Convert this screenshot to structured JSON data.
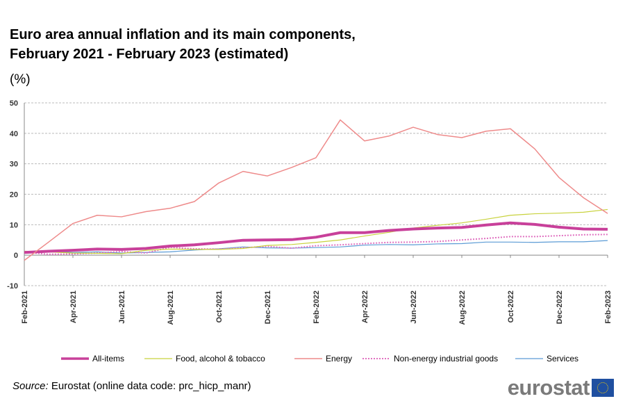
{
  "title_line1": "Euro area annual inflation and its main components,",
  "title_line2": "February 2021 - February 2023 (estimated)",
  "unit_label": "(%)",
  "source_prefix": "Source:",
  "source_text": " Eurostat (online data code: prc_hicp_manr)",
  "logo_text": "eurostat",
  "chart_data": {
    "type": "line",
    "ylim": [
      -10,
      50
    ],
    "yticks": [
      -10,
      0,
      10,
      20,
      30,
      40,
      50
    ],
    "grid": true,
    "legend_position": "bottom",
    "x": [
      "Feb-2021",
      "Mar-2021",
      "Apr-2021",
      "May-2021",
      "Jun-2021",
      "Jul-2021",
      "Aug-2021",
      "Sep-2021",
      "Oct-2021",
      "Nov-2021",
      "Dec-2021",
      "Jan-2022",
      "Feb-2022",
      "Mar-2022",
      "Apr-2022",
      "May-2022",
      "Jun-2022",
      "Jul-2022",
      "Aug-2022",
      "Sep-2022",
      "Oct-2022",
      "Nov-2022",
      "Dec-2022",
      "Jan-2023",
      "Feb-2023"
    ],
    "xtick_labels": [
      "Feb-2021",
      "Apr-2021",
      "Jun-2021",
      "Aug-2021",
      "Oct-2021",
      "Dec-2021",
      "Feb-2022",
      "Apr-2022",
      "Jun-2022",
      "Aug-2022",
      "Oct-2022",
      "Dec-2022",
      "Feb-2023"
    ],
    "series": [
      {
        "name": "All-items",
        "color": "#c8409a",
        "values": [
          0.9,
          1.3,
          1.6,
          2.0,
          1.9,
          2.2,
          3.0,
          3.4,
          4.1,
          4.9,
          5.0,
          5.1,
          5.9,
          7.4,
          7.4,
          8.1,
          8.6,
          8.9,
          9.1,
          9.9,
          10.6,
          10.1,
          9.2,
          8.6,
          8.5
        ]
      },
      {
        "name": "Food, alcohol & tobacco",
        "color": "#c8d23c",
        "values": [
          1.3,
          1.1,
          0.7,
          0.6,
          0.5,
          1.6,
          2.0,
          1.9,
          1.9,
          2.2,
          3.2,
          3.5,
          4.2,
          5.0,
          6.3,
          7.5,
          8.9,
          9.8,
          10.6,
          11.8,
          13.1,
          13.6,
          13.8,
          14.1,
          15.0
        ]
      },
      {
        "name": "Energy",
        "color": "#ee8a8a",
        "values": [
          -1.7,
          4.3,
          10.4,
          13.1,
          12.6,
          14.3,
          15.4,
          17.6,
          23.7,
          27.5,
          26.0,
          28.8,
          32.0,
          44.4,
          37.5,
          39.1,
          42.0,
          39.6,
          38.6,
          40.7,
          41.5,
          34.9,
          25.5,
          18.9,
          13.7
        ]
      },
      {
        "name": "Non-energy industrial goods",
        "color": "#e070c0",
        "values": [
          1.0,
          0.3,
          0.4,
          0.7,
          1.2,
          0.7,
          2.6,
          2.1,
          2.0,
          2.4,
          2.9,
          2.3,
          3.1,
          3.4,
          3.8,
          4.2,
          4.3,
          4.5,
          5.0,
          5.5,
          6.1,
          6.1,
          6.4,
          6.7,
          6.8
        ]
      },
      {
        "name": "Services",
        "color": "#5b9bd5",
        "values": [
          1.2,
          1.3,
          0.9,
          1.1,
          0.7,
          0.9,
          1.1,
          1.7,
          2.1,
          2.7,
          2.4,
          2.3,
          2.5,
          2.7,
          3.3,
          3.5,
          3.4,
          3.7,
          3.8,
          4.3,
          4.3,
          4.2,
          4.4,
          4.4,
          4.8
        ]
      }
    ]
  }
}
